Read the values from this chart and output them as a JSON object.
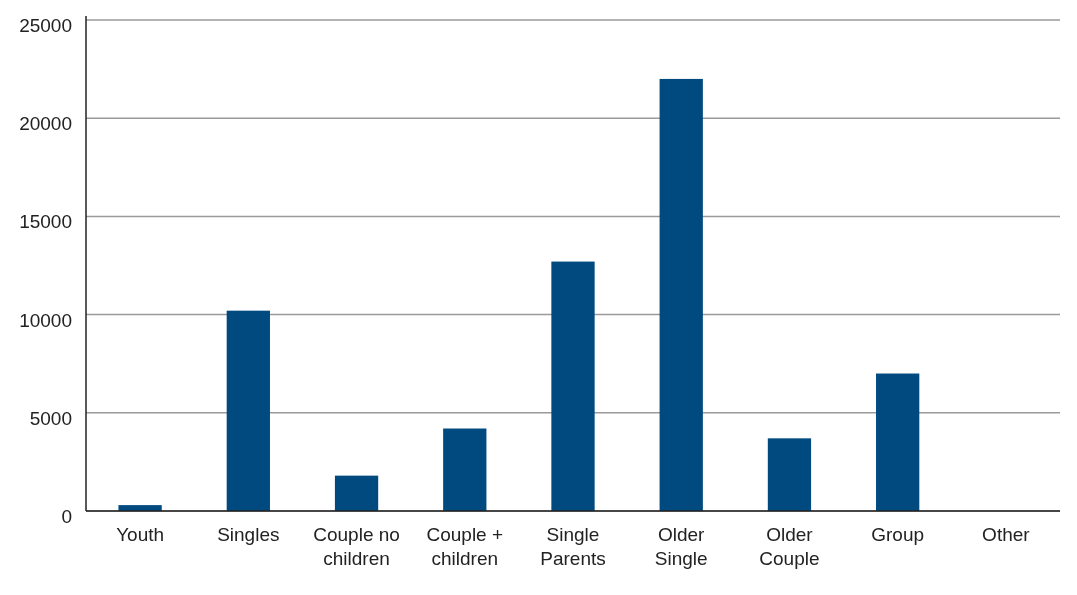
{
  "chart_data": {
    "type": "bar",
    "categories": [
      "Youth",
      "Singles",
      "Couple no children",
      "Couple + children",
      "Single Parents",
      "Older Single",
      "Older Couple",
      "Group",
      "Other"
    ],
    "values": [
      300,
      10200,
      1800,
      4200,
      12700,
      22000,
      3700,
      7000,
      0
    ],
    "color": "#004a80",
    "ylim": [
      0,
      25000
    ],
    "yticks": [
      0,
      5000,
      10000,
      15000,
      20000,
      25000
    ],
    "grid": "y"
  }
}
